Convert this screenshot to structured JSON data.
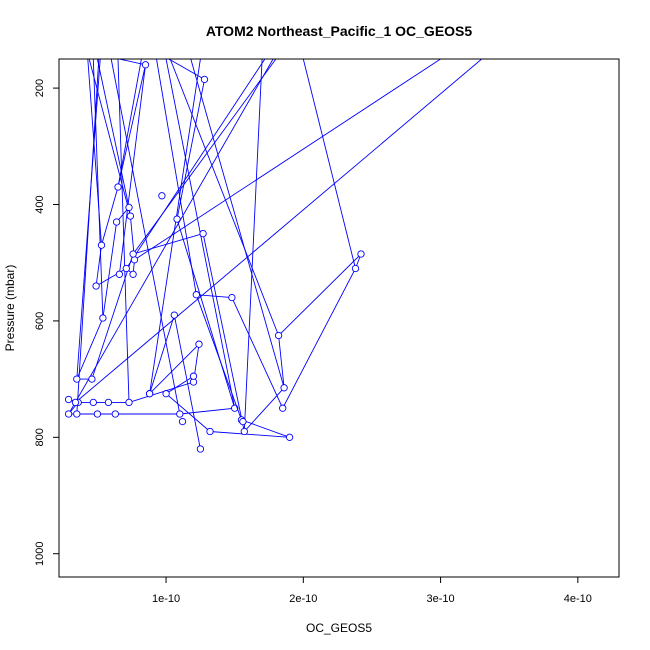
{
  "chart_data": {
    "type": "line",
    "title": "ATOM2 Northeast_Pacific_1 OC_GEOS5",
    "xlabel": "OC_GEOS5",
    "ylabel": "Pressure (mbar)",
    "xlim": [
      2.2e-11,
      4.3e-10
    ],
    "ylim": [
      1040,
      150
    ],
    "x_ticks": [
      1e-10,
      2e-10,
      3e-10,
      4e-10
    ],
    "x_tick_labels": [
      "1e-10",
      "2e-10",
      "3e-10",
      "4e-10"
    ],
    "y_ticks": [
      200,
      400,
      600,
      800,
      1000
    ],
    "y_tick_labels": [
      "200",
      "400",
      "600",
      "800",
      "1000"
    ],
    "series_color": "#0000ff",
    "marker": "open-circle",
    "grid": false,
    "legend": "none",
    "series": [
      {
        "points": [
          [
            1.28e-10,
            185
          ],
          [
            1.08e-10,
            425
          ],
          [
            1.5e-10,
            750
          ],
          [
            1.1e-10,
            760
          ],
          [
            6.3e-11,
            760
          ],
          [
            5e-11,
            760
          ],
          [
            3.5e-11,
            760
          ],
          [
            2.9e-11,
            760
          ],
          [
            3.6e-11,
            740
          ],
          [
            2.9e-11,
            735
          ],
          [
            3.4e-11,
            740
          ],
          [
            4.7e-11,
            740
          ],
          [
            5.8e-11,
            740
          ],
          [
            7.3e-11,
            740
          ],
          [
            1.2e-10,
            705
          ],
          [
            1.24e-10,
            640
          ],
          [
            8.8e-11,
            725
          ],
          [
            1.06e-10,
            590
          ],
          [
            1.25e-10,
            820
          ]
        ],
        "leader_starts": [
          [
            1.02e-10,
            150
          ],
          null,
          [
            1e-10,
            150
          ],
          [
            6e-11,
            150
          ],
          null,
          null,
          [
            5.1e-11,
            150
          ],
          [
            1.78e-10,
            150
          ],
          null,
          null,
          [
            3.3e-10,
            150
          ],
          null,
          null,
          [
            6.5e-11,
            150
          ],
          null,
          null,
          [
            1.25e-10,
            150
          ],
          null,
          null
        ]
      },
      {
        "points": [
          [
            6.6e-11,
            520
          ],
          [
            8.5e-11,
            160
          ],
          [
            6.5e-11,
            370
          ],
          [
            5.3e-11,
            470
          ],
          [
            4.9e-11,
            540
          ],
          [
            7.1e-11,
            510
          ],
          [
            7.6e-11,
            520
          ],
          [
            7.7e-11,
            495
          ],
          [
            7.4e-11,
            420
          ],
          [
            7.3e-11,
            405
          ],
          [
            6.4e-11,
            430
          ],
          [
            5.4e-11,
            595
          ],
          [
            3.5e-11,
            700
          ],
          [
            4.6e-11,
            700
          ],
          [
            7.6e-11,
            485
          ],
          [
            1.27e-10,
            450
          ],
          [
            1.57e-10,
            790
          ],
          [
            1.86e-10,
            715
          ],
          [
            1.82e-10,
            625
          ],
          [
            2.42e-10,
            485
          ],
          [
            2.38e-10,
            510
          ],
          [
            1.85e-10,
            750
          ],
          [
            1.48e-10,
            560
          ],
          [
            1.22e-10,
            555
          ],
          [
            1.55e-10,
            770
          ],
          [
            1.9e-10,
            800
          ],
          [
            1.32e-10,
            790
          ],
          [
            1e-10,
            725
          ],
          [
            1.2e-10,
            695
          ]
        ],
        "leader_starts": [
          null,
          [
            6.6e-11,
            150
          ],
          [
            8.2e-11,
            150
          ],
          [
            4.3e-11,
            150
          ],
          null,
          [
            1.72e-10,
            150
          ],
          null,
          [
            3e-10,
            150
          ],
          [
            4.4e-11,
            150
          ],
          [
            5e-11,
            150
          ],
          null,
          [
            4.7e-11,
            150
          ],
          [
            5.2e-11,
            150
          ],
          null,
          [
            1.8e-10,
            150
          ],
          null,
          [
            1.7e-10,
            150
          ],
          [
            1.18e-10,
            150
          ],
          [
            1.03e-10,
            150
          ],
          null,
          [
            2e-10,
            150
          ],
          null,
          null,
          [
            9.3e-11,
            150
          ],
          null,
          null,
          null,
          null,
          null
        ]
      }
    ],
    "isolated_points": [
      [
        9.7e-11,
        385
      ],
      [
        1.56e-10,
        773
      ],
      [
        1.12e-10,
        773
      ],
      [
        8.8e-11,
        725
      ]
    ]
  }
}
